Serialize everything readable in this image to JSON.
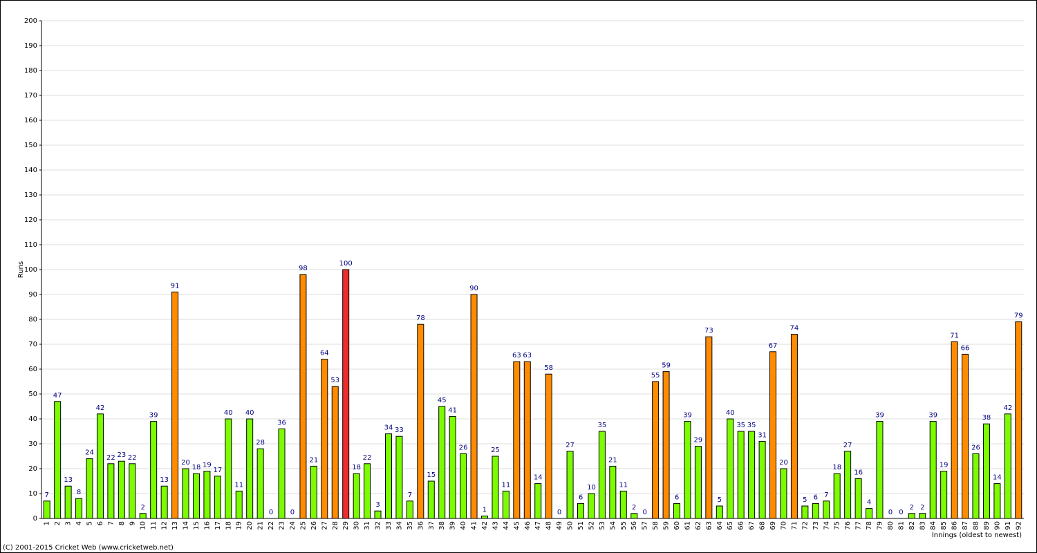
{
  "chart_data": {
    "type": "bar",
    "y_label": "Runs",
    "x_label": "Innings (oldest to newest)",
    "footer": "(C) 2001-2015 Cricket Web (www.cricketweb.net)",
    "categories": [
      "1",
      "2",
      "3",
      "4",
      "5",
      "6",
      "7",
      "8",
      "9",
      "10",
      "11",
      "12",
      "13",
      "14",
      "15",
      "16",
      "17",
      "18",
      "19",
      "20",
      "21",
      "22",
      "23",
      "24",
      "25",
      "26",
      "27",
      "28",
      "29",
      "30",
      "31",
      "32",
      "33",
      "34",
      "35",
      "36",
      "37",
      "38",
      "39",
      "40",
      "41",
      "42",
      "43",
      "44",
      "45",
      "46",
      "47",
      "48",
      "49",
      "50",
      "51",
      "52",
      "53",
      "54",
      "55",
      "56",
      "57",
      "58",
      "59",
      "60",
      "61",
      "62",
      "63",
      "64",
      "65",
      "66",
      "67",
      "68",
      "69",
      "70",
      "71",
      "72",
      "73",
      "74",
      "75",
      "76",
      "77",
      "78",
      "79",
      "80",
      "81",
      "82",
      "83",
      "84",
      "85",
      "86",
      "87",
      "88",
      "89",
      "90",
      "91",
      "92"
    ],
    "values": [
      7,
      47,
      13,
      8,
      24,
      42,
      22,
      23,
      22,
      2,
      39,
      13,
      91,
      20,
      18,
      19,
      17,
      40,
      11,
      40,
      28,
      0,
      36,
      0,
      98,
      21,
      64,
      53,
      100,
      18,
      22,
      3,
      34,
      33,
      7,
      78,
      15,
      45,
      41,
      26,
      90,
      1,
      25,
      11,
      63,
      63,
      14,
      58,
      0,
      27,
      6,
      10,
      35,
      21,
      11,
      2,
      0,
      55,
      59,
      6,
      39,
      29,
      73,
      5,
      40,
      35,
      35,
      31,
      67,
      20,
      74,
      5,
      6,
      7,
      18,
      27,
      16,
      4,
      39,
      0,
      0,
      2,
      2,
      39,
      19,
      71,
      66,
      26,
      38,
      14,
      42,
      79
    ],
    "colors": [
      "#7cfc00",
      "#7cfc00",
      "#7cfc00",
      "#7cfc00",
      "#7cfc00",
      "#7cfc00",
      "#7cfc00",
      "#7cfc00",
      "#7cfc00",
      "#7cfc00",
      "#7cfc00",
      "#7cfc00",
      "#ff8c00",
      "#7cfc00",
      "#7cfc00",
      "#7cfc00",
      "#7cfc00",
      "#7cfc00",
      "#7cfc00",
      "#7cfc00",
      "#7cfc00",
      "#7cfc00",
      "#7cfc00",
      "#7cfc00",
      "#ff8c00",
      "#7cfc00",
      "#ff8c00",
      "#ff8c00",
      "#ee2c2c",
      "#7cfc00",
      "#7cfc00",
      "#7cfc00",
      "#7cfc00",
      "#7cfc00",
      "#7cfc00",
      "#ff8c00",
      "#7cfc00",
      "#7cfc00",
      "#7cfc00",
      "#7cfc00",
      "#ff8c00",
      "#7cfc00",
      "#7cfc00",
      "#7cfc00",
      "#ff8c00",
      "#ff8c00",
      "#7cfc00",
      "#ff8c00",
      "#7cfc00",
      "#7cfc00",
      "#7cfc00",
      "#7cfc00",
      "#7cfc00",
      "#7cfc00",
      "#7cfc00",
      "#7cfc00",
      "#7cfc00",
      "#ff8c00",
      "#ff8c00",
      "#7cfc00",
      "#7cfc00",
      "#7cfc00",
      "#ff8c00",
      "#7cfc00",
      "#7cfc00",
      "#7cfc00",
      "#7cfc00",
      "#7cfc00",
      "#ff8c00",
      "#7cfc00",
      "#ff8c00",
      "#7cfc00",
      "#7cfc00",
      "#7cfc00",
      "#7cfc00",
      "#7cfc00",
      "#7cfc00",
      "#7cfc00",
      "#7cfc00",
      "#7cfc00",
      "#7cfc00",
      "#7cfc00",
      "#7cfc00",
      "#7cfc00",
      "#7cfc00",
      "#ff8c00",
      "#ff8c00",
      "#7cfc00",
      "#7cfc00",
      "#7cfc00",
      "#7cfc00",
      "#ff8c00"
    ],
    "ylim": [
      0,
      200
    ],
    "yticks": [
      0,
      10,
      20,
      30,
      40,
      50,
      60,
      70,
      80,
      90,
      100,
      110,
      120,
      130,
      140,
      150,
      160,
      170,
      180,
      190,
      200
    ],
    "grid": true
  }
}
